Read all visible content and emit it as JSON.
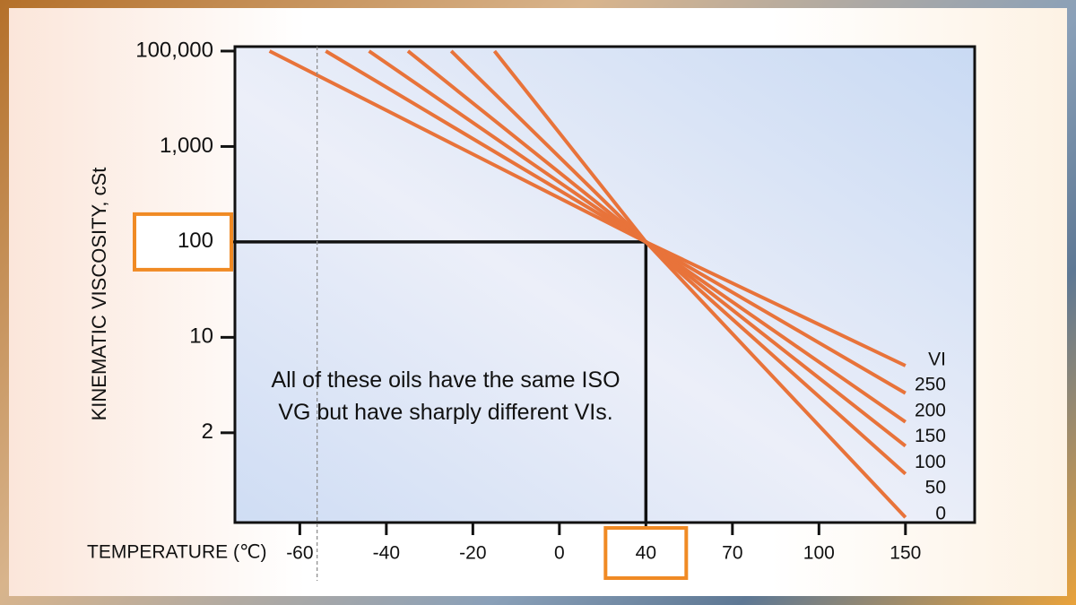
{
  "chart_data": {
    "type": "line",
    "ylabel": "KINEMATIC VISCOSITY, cSt",
    "xlabel": "TEMPERATURE (℃)",
    "xscale": "tick-spaced",
    "yscale": "tick-spaced-log",
    "xlim": [
      -75,
      190
    ],
    "ylim": [
      0.44,
      124000
    ],
    "xticks": [
      -60,
      -40,
      -20,
      0,
      40,
      70,
      100,
      150
    ],
    "yticks": [
      2,
      10,
      100,
      {
        "value": 1000,
        "label": "1,000"
      },
      {
        "value": 100000,
        "label": "100,000"
      }
    ],
    "legend_title": "VI",
    "series": [
      {
        "name": "250",
        "color": "#e8733a",
        "x": [
          -67,
          40,
          150
        ],
        "values": [
          100000,
          100,
          6.2
        ]
      },
      {
        "name": "200",
        "color": "#e8733a",
        "x": [
          -54,
          40,
          150
        ],
        "values": [
          100000,
          100,
          3.9
        ]
      },
      {
        "name": "150",
        "color": "#e8733a",
        "x": [
          -44,
          40,
          150
        ],
        "values": [
          100000,
          100,
          2.4
        ]
      },
      {
        "name": "100",
        "color": "#e8733a",
        "x": [
          -35,
          40,
          150
        ],
        "values": [
          100000,
          100,
          1.6
        ]
      },
      {
        "name": "50",
        "color": "#e8733a",
        "x": [
          -25,
          40,
          150
        ],
        "values": [
          100000,
          100,
          1.0
        ]
      },
      {
        "name": "0",
        "color": "#e8733a",
        "x": [
          -15,
          40,
          150
        ],
        "values": [
          100000,
          100,
          0.48
        ]
      }
    ],
    "highlight": {
      "x": 40,
      "y": 100,
      "color": "#f08a24"
    },
    "reference_line": {
      "x": -56,
      "style": "dashed"
    },
    "annotation": "All of these oils have the same ISO VG but have sharply different VIs."
  }
}
